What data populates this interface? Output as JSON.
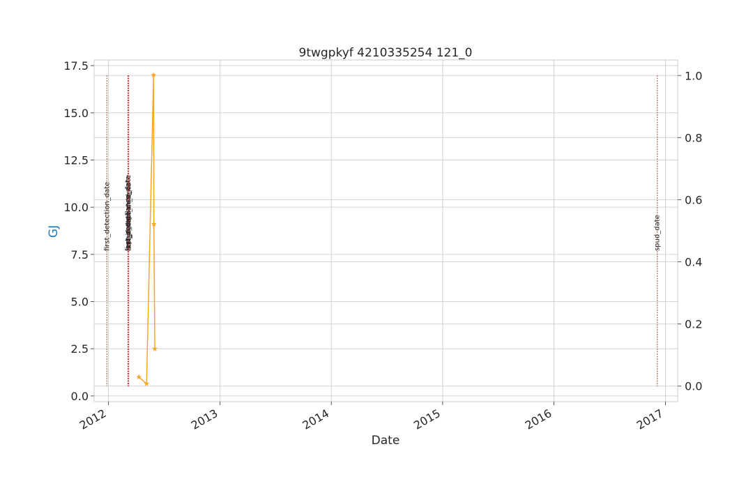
{
  "chart_data": {
    "type": "line",
    "title": "9twgpkyf 4210335254 121_0",
    "xlabel": "Date",
    "ylabel": "GJ",
    "x_ticks": [
      "2012",
      "2013",
      "2014",
      "2015",
      "2016",
      "2017"
    ],
    "y_ticks_left": [
      "0.0",
      "2.5",
      "5.0",
      "7.5",
      "10.0",
      "12.5",
      "15.0",
      "17.5"
    ],
    "y_ticks_right": [
      "0.0",
      "0.2",
      "0.4",
      "0.6",
      "0.8",
      "1.0"
    ],
    "ylim_left": [
      -0.3,
      17.8
    ],
    "ylim_right": [
      -0.05,
      1.05
    ],
    "xlim": [
      "2011-11-15",
      "2017-02-10"
    ],
    "grid": true,
    "series": [
      {
        "axis": "left",
        "color": "#f5a623",
        "marker": "star",
        "points": [
          {
            "date": "2012-04-10",
            "value": 1.0
          },
          {
            "date": "2012-05-05",
            "value": 0.65
          },
          {
            "date": "2012-05-28",
            "value": 17.0
          },
          {
            "date": "2012-05-29",
            "value": 9.1
          },
          {
            "date": "2012-06-01",
            "value": 2.5
          }
        ]
      }
    ],
    "vertical_lines": [
      {
        "date": "2011-12-27",
        "label": "first_detection_date",
        "color": "#a0522d"
      },
      {
        "date": "2012-03-05",
        "label": "last_compliance_date",
        "color": "#d62728"
      },
      {
        "date": "2012-03-06",
        "label": "first_compliance_date",
        "color": "#d62728"
      },
      {
        "date": "2012-03-06",
        "label": "repair_date",
        "color": "#d62728"
      },
      {
        "date": "2012-03-07",
        "label": "last_detection_date",
        "color": "#d62728"
      },
      {
        "date": "2012-03-07",
        "label": "completion_date",
        "color": "#d62728"
      },
      {
        "date": "2016-12-05",
        "label": "spud_date",
        "color": "#a0522d"
      }
    ]
  }
}
